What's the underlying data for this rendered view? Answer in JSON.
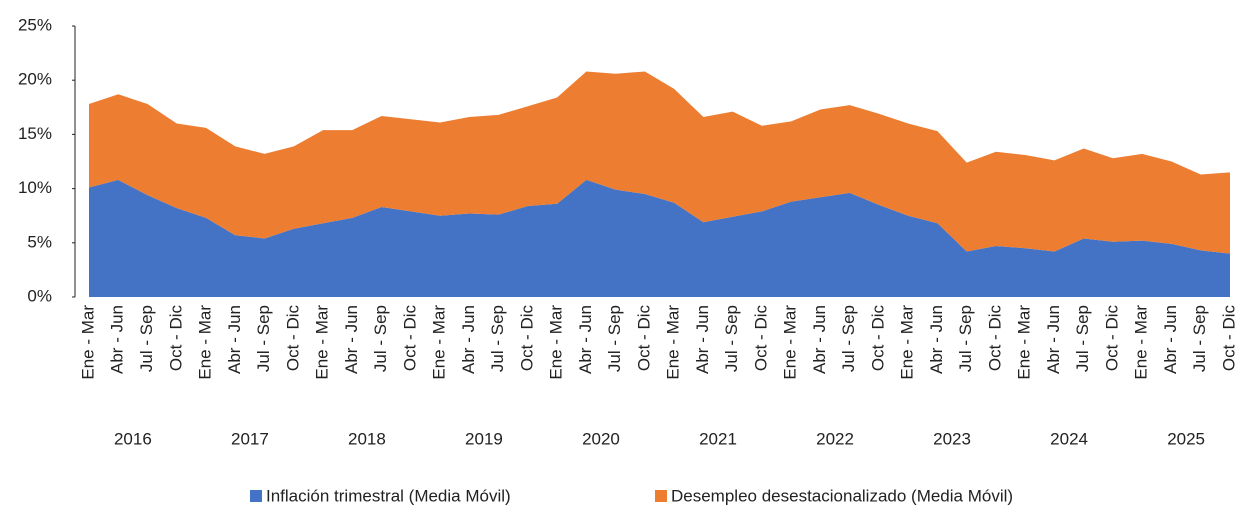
{
  "chart_data": {
    "type": "stacked_area",
    "categories": [
      "Ene - Mar",
      "Abr - Jun",
      "Jul - Sep",
      "Oct - Dic",
      "Ene - Mar",
      "Abr - Jun",
      "Jul - Sep",
      "Oct - Dic",
      "Ene - Mar",
      "Abr - Jun",
      "Jul - Sep",
      "Oct - Dic",
      "Ene - Mar",
      "Abr - Jun",
      "Jul - Sep",
      "Oct - Dic",
      "Ene - Mar",
      "Abr - Jun",
      "Jul - Sep",
      "Oct - Dic",
      "Ene - Mar",
      "Abr - Jun",
      "Jul - Sep",
      "Oct - Dic",
      "Ene - Mar",
      "Abr - Jun",
      "Jul - Sep",
      "Oct - Dic",
      "Ene - Mar",
      "Abr - Jun",
      "Jul - Sep",
      "Oct - Dic",
      "Ene - Mar",
      "Abr - Jun",
      "Jul - Sep",
      "Oct - Dic",
      "Ene - Mar",
      "Abr - Jun",
      "Jul - Sep",
      "Oct - Dic"
    ],
    "groups": [
      "2016",
      "2017",
      "2018",
      "2019",
      "2020",
      "2021",
      "2022",
      "2023",
      "2024",
      "2025"
    ],
    "series": [
      {
        "name": "Inflación trimestral (Media Móvil)",
        "color": "#4472c4",
        "values": [
          10.1,
          10.8,
          9.4,
          8.2,
          7.3,
          5.7,
          5.4,
          6.3,
          6.8,
          7.3,
          8.3,
          7.9,
          7.5,
          7.7,
          7.6,
          8.4,
          8.6,
          10.8,
          9.9,
          9.5,
          8.7,
          6.9,
          7.4,
          7.9,
          8.8,
          9.2,
          9.6,
          8.5,
          7.5,
          6.8,
          4.2,
          4.7,
          4.5,
          4.2,
          5.4,
          5.1,
          5.2,
          4.9,
          4.3,
          4.0
        ]
      },
      {
        "name": "Desempleo desestacionalizado (Media Móvil)",
        "color": "#ed7d31",
        "values": [
          7.7,
          7.9,
          8.4,
          7.8,
          8.3,
          8.2,
          7.8,
          7.6,
          8.6,
          8.1,
          8.4,
          8.5,
          8.6,
          8.9,
          9.2,
          9.2,
          9.8,
          10.0,
          10.7,
          11.3,
          10.5,
          9.7,
          9.7,
          7.9,
          7.4,
          8.1,
          8.1,
          8.4,
          8.5,
          8.5,
          8.2,
          8.7,
          8.6,
          8.4,
          8.3,
          7.7,
          8.0,
          7.6,
          7.0,
          7.5
        ]
      }
    ],
    "ylim": [
      0,
      25
    ],
    "yticks": [
      {
        "value": 0,
        "label": "0%"
      },
      {
        "value": 5,
        "label": "5%"
      },
      {
        "value": 10,
        "label": "10%"
      },
      {
        "value": 15,
        "label": "15%"
      },
      {
        "value": 20,
        "label": "20%"
      },
      {
        "value": 25,
        "label": "25%"
      }
    ],
    "legend": "bottom"
  }
}
